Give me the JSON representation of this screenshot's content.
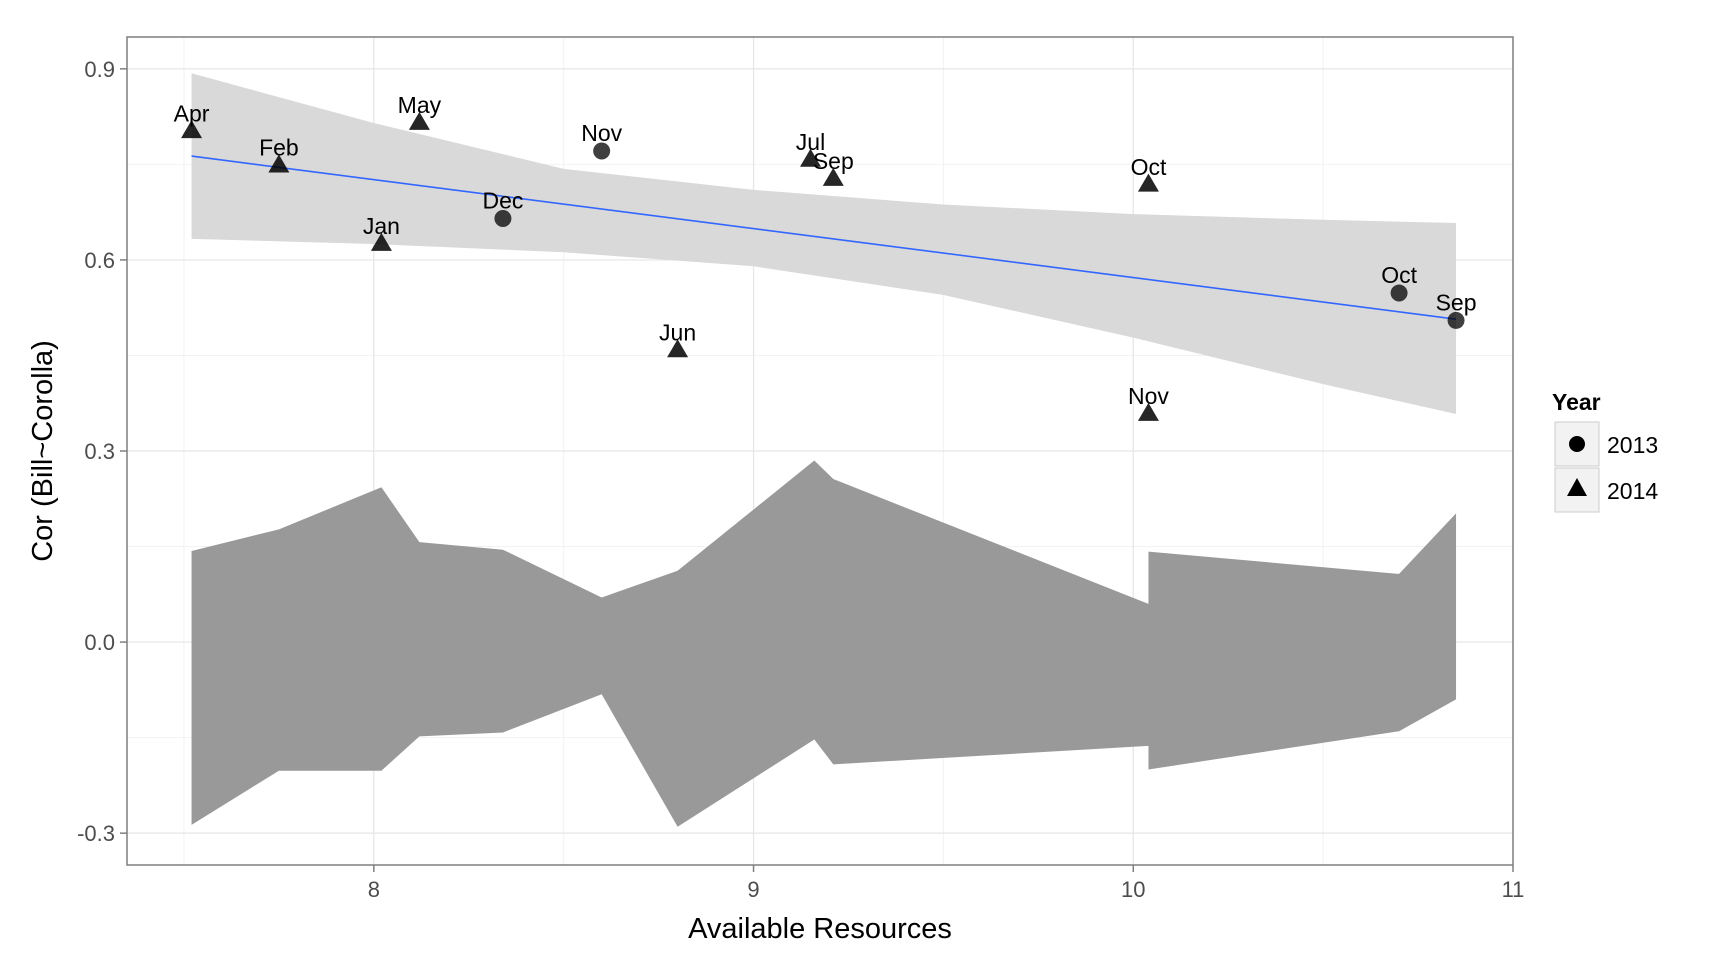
{
  "chart_data": {
    "type": "scatter",
    "xlabel": "Available Resources",
    "ylabel": "Cor (Bill~Corolla)",
    "xlim": [
      7.35,
      11.0
    ],
    "ylim": [
      -0.35,
      0.95
    ],
    "x_ticks": [
      8,
      9,
      10,
      11
    ],
    "x_tick_labels": [
      "8",
      "9",
      "10",
      "11"
    ],
    "y_ticks": [
      -0.3,
      0.0,
      0.3,
      0.6,
      0.9
    ],
    "y_tick_labels": [
      "-0.3",
      "0.0",
      "0.3",
      "0.6",
      "0.9"
    ],
    "grid": true,
    "legend": {
      "title": "Year",
      "placement": "right",
      "entries": [
        {
          "label": "2013",
          "shape": "circle"
        },
        {
          "label": "2014",
          "shape": "triangle"
        }
      ]
    },
    "series": [
      {
        "name": "2013",
        "shape": "circle",
        "points": [
          {
            "x": 8.34,
            "y": 0.665,
            "label": "Dec"
          },
          {
            "x": 8.6,
            "y": 0.771,
            "label": "Nov"
          },
          {
            "x": 10.7,
            "y": 0.548,
            "label": "Oct"
          },
          {
            "x": 10.85,
            "y": 0.505,
            "label": "Sep"
          }
        ]
      },
      {
        "name": "2014",
        "shape": "triangle",
        "points": [
          {
            "x": 7.52,
            "y": 0.802,
            "label": "Apr"
          },
          {
            "x": 7.75,
            "y": 0.748,
            "label": "Feb"
          },
          {
            "x": 8.02,
            "y": 0.625,
            "label": "Jan"
          },
          {
            "x": 8.12,
            "y": 0.815,
            "label": "May"
          },
          {
            "x": 8.8,
            "y": 0.458,
            "label": "Jun"
          },
          {
            "x": 9.15,
            "y": 0.757,
            "label": "Jul"
          },
          {
            "x": 9.21,
            "y": 0.727,
            "label": "Sep"
          },
          {
            "x": 10.04,
            "y": 0.718,
            "label": "Oct"
          },
          {
            "x": 10.04,
            "y": 0.358,
            "label": "Nov"
          }
        ]
      }
    ],
    "trend_line": {
      "color": "#3366ff",
      "start": [
        7.52,
        0.763
      ],
      "end": [
        10.85,
        0.507
      ]
    },
    "confidence_band": {
      "fill": "#d9d9d9",
      "x": [
        7.52,
        8.0,
        8.5,
        9.0,
        9.5,
        10.0,
        10.5,
        10.85
      ],
      "upper": [
        0.893,
        0.815,
        0.743,
        0.71,
        0.687,
        0.672,
        0.663,
        0.658
      ],
      "lower": [
        0.633,
        0.625,
        0.612,
        0.59,
        0.545,
        0.478,
        0.405,
        0.358
      ]
    },
    "null_envelope": {
      "fill": "#999999",
      "upper": [
        [
          7.52,
          0.143
        ],
        [
          7.75,
          0.177
        ],
        [
          8.02,
          0.243
        ],
        [
          8.12,
          0.157
        ],
        [
          8.34,
          0.145
        ],
        [
          8.6,
          0.07
        ],
        [
          8.8,
          0.112
        ],
        [
          9.16,
          0.285
        ],
        [
          9.21,
          0.256
        ],
        [
          10.04,
          0.06
        ],
        [
          10.04,
          0.142
        ],
        [
          10.7,
          0.107
        ],
        [
          10.85,
          0.202
        ]
      ],
      "lower": [
        [
          7.52,
          -0.287
        ],
        [
          7.75,
          -0.202
        ],
        [
          8.02,
          -0.202
        ],
        [
          8.12,
          -0.148
        ],
        [
          8.34,
          -0.142
        ],
        [
          8.6,
          -0.082
        ],
        [
          8.8,
          -0.29
        ],
        [
          9.16,
          -0.153
        ],
        [
          9.21,
          -0.192
        ],
        [
          10.04,
          -0.163
        ],
        [
          10.04,
          -0.2
        ],
        [
          10.7,
          -0.14
        ],
        [
          10.85,
          -0.09
        ]
      ]
    }
  }
}
